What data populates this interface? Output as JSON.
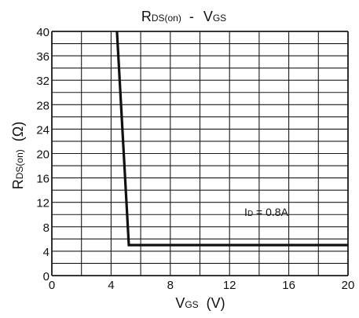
{
  "chart_data": {
    "type": "line",
    "title": {
      "main": "R",
      "main_sub": "DS(on)",
      "sep": "-",
      "right": "V",
      "right_sub": "GS"
    },
    "xlabel": {
      "main": "V",
      "sub": "GS",
      "unit": "(V)"
    },
    "ylabel": {
      "main": "R",
      "sub": "DS(on)",
      "unit": "(Ω)"
    },
    "xlim": [
      0,
      20
    ],
    "ylim": [
      0,
      40
    ],
    "x_ticks": [
      0,
      4,
      8,
      12,
      16,
      20
    ],
    "y_ticks": [
      0,
      4,
      8,
      12,
      16,
      20,
      24,
      28,
      32,
      36,
      40
    ],
    "x_grid_step": 2,
    "y_grid_step": 2,
    "grid": true,
    "series": [
      {
        "x": [
          4.4,
          5.2,
          5.2,
          20
        ],
        "y": [
          40,
          5,
          5,
          5
        ]
      }
    ],
    "annotation": {
      "main": "I",
      "sub": "D",
      "rest": " = 0.8A",
      "x": 13,
      "y": 9.8
    }
  }
}
